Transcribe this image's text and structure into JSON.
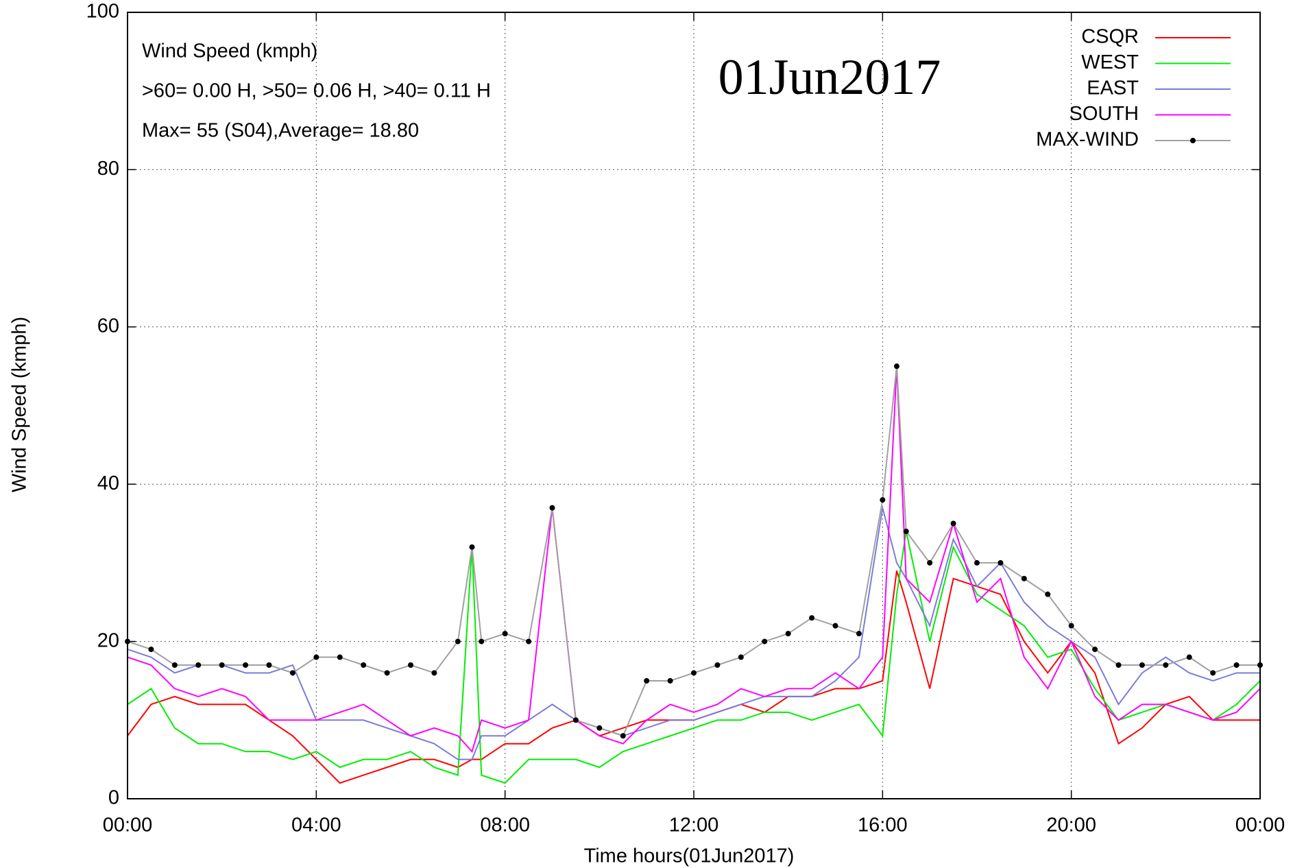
{
  "chart_data": {
    "type": "line",
    "title": "01Jun2017",
    "annotations": [
      "Wind Speed (kmph)",
      ">60=  0.00 H, >50=  0.06 H, >40=  0.11 H",
      "Max= 55 (S04),Average= 18.80"
    ],
    "xlabel": "Time hours(01Jun2017)",
    "ylabel": "Wind Speed (kmph)",
    "x": [
      0,
      0.5,
      1,
      1.5,
      2,
      2.5,
      3,
      3.5,
      4,
      4.5,
      5,
      5.5,
      6,
      6.5,
      7,
      7.3,
      7.5,
      8,
      8.5,
      9,
      9.5,
      10,
      10.5,
      11,
      11.5,
      12,
      12.5,
      13,
      13.5,
      14,
      14.5,
      15,
      15.5,
      16,
      16.3,
      16.5,
      17,
      17.5,
      18,
      18.5,
      19,
      19.5,
      20,
      20.5,
      21,
      21.5,
      22,
      22.5,
      23,
      23.5,
      24
    ],
    "xlim": [
      0,
      24
    ],
    "xticks": [
      {
        "value": 0,
        "label": "00:00"
      },
      {
        "value": 4,
        "label": "04:00"
      },
      {
        "value": 8,
        "label": "08:00"
      },
      {
        "value": 12,
        "label": "12:00"
      },
      {
        "value": 16,
        "label": "16:00"
      },
      {
        "value": 20,
        "label": "20:00"
      },
      {
        "value": 24,
        "label": "00:00"
      }
    ],
    "ylim": [
      0,
      100
    ],
    "yticks": [
      0,
      20,
      40,
      60,
      80,
      100
    ],
    "grid": true,
    "legend": "top-right",
    "series": [
      {
        "name": "CSQR",
        "color": "#ff0000",
        "values": [
          8,
          12,
          13,
          12,
          12,
          12,
          10,
          8,
          5,
          2,
          3,
          4,
          5,
          5,
          4,
          5,
          5,
          7,
          7,
          9,
          10,
          8,
          9,
          10,
          10,
          10,
          11,
          12,
          11,
          13,
          13,
          14,
          14,
          15,
          29,
          25,
          14,
          28,
          27,
          26,
          20,
          16,
          20,
          16,
          7,
          9,
          12,
          13,
          10,
          10,
          10
        ]
      },
      {
        "name": "WEST",
        "color": "#00ee00",
        "values": [
          12,
          14,
          9,
          7,
          7,
          6,
          6,
          5,
          6,
          4,
          5,
          5,
          6,
          4,
          3,
          32,
          3,
          2,
          5,
          5,
          5,
          4,
          6,
          7,
          8,
          9,
          10,
          10,
          11,
          11,
          10,
          11,
          12,
          8,
          26,
          34,
          20,
          32,
          26,
          24,
          22,
          18,
          19,
          14,
          10,
          11,
          12,
          11,
          10,
          12,
          15
        ]
      },
      {
        "name": "EAST",
        "color": "#7b7bdb",
        "values": [
          19,
          18,
          16,
          17,
          17,
          16,
          16,
          17,
          10,
          10,
          10,
          9,
          8,
          7,
          5,
          5,
          8,
          8,
          10,
          12,
          10,
          9,
          8,
          9,
          10,
          10,
          11,
          12,
          13,
          13,
          13,
          15,
          18,
          37,
          30,
          28,
          22,
          33,
          27,
          30,
          25,
          22,
          20,
          18,
          12,
          16,
          18,
          16,
          15,
          16,
          16
        ]
      },
      {
        "name": "SOUTH",
        "color": "#ff00ff",
        "values": [
          18,
          17,
          14,
          13,
          14,
          13,
          10,
          10,
          10,
          11,
          12,
          10,
          8,
          9,
          8,
          6,
          10,
          9,
          10,
          37,
          10,
          8,
          7,
          10,
          12,
          11,
          12,
          14,
          13,
          14,
          14,
          16,
          14,
          18,
          55,
          28,
          25,
          35,
          25,
          28,
          18,
          14,
          20,
          13,
          10,
          12,
          12,
          11,
          10,
          11,
          14
        ]
      },
      {
        "name": "MAX-WIND",
        "color": "#a0a0a0",
        "marker_color": "#000000",
        "values": [
          20,
          19,
          17,
          17,
          17,
          17,
          17,
          16,
          18,
          18,
          17,
          16,
          17,
          16,
          20,
          32,
          20,
          21,
          20,
          37,
          10,
          9,
          8,
          15,
          15,
          16,
          17,
          18,
          20,
          21,
          23,
          22,
          21,
          38,
          55,
          34,
          30,
          35,
          30,
          30,
          28,
          26,
          22,
          19,
          17,
          17,
          17,
          18,
          16,
          17,
          17
        ]
      }
    ]
  }
}
